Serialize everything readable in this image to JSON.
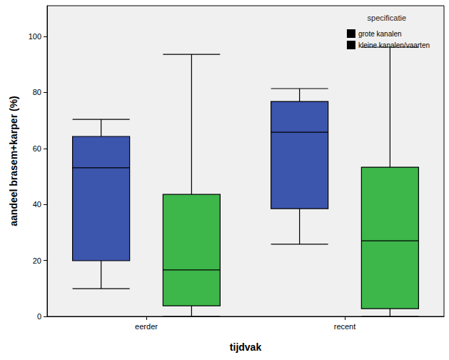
{
  "chart_data": {
    "type": "boxplot",
    "x_label": "tijdvak",
    "y_label": "aandeel brasem+karper (%)",
    "categories": [
      "eerder",
      "recent"
    ],
    "legend_title": "specificatie",
    "legend": "top-right",
    "grid": false,
    "ylim": [
      0,
      111
    ],
    "yticks": [
      0,
      20,
      40,
      60,
      80,
      100
    ],
    "series": [
      {
        "name": "grote kanalen",
        "color": "#3c55ad",
        "values": [
          [
            9.9,
            19.9,
            53.1,
            64.3,
            70.4
          ],
          [
            25.8,
            38.5,
            65.8,
            76.8,
            81.4
          ]
        ]
      },
      {
        "name": "kleine kanalen/vaarten",
        "color": "#3db64a",
        "values": [
          [
            0,
            3.8,
            16.6,
            43.6,
            93.6
          ],
          [
            0,
            2.8,
            27.0,
            53.3,
            96.2
          ]
        ]
      }
    ]
  }
}
